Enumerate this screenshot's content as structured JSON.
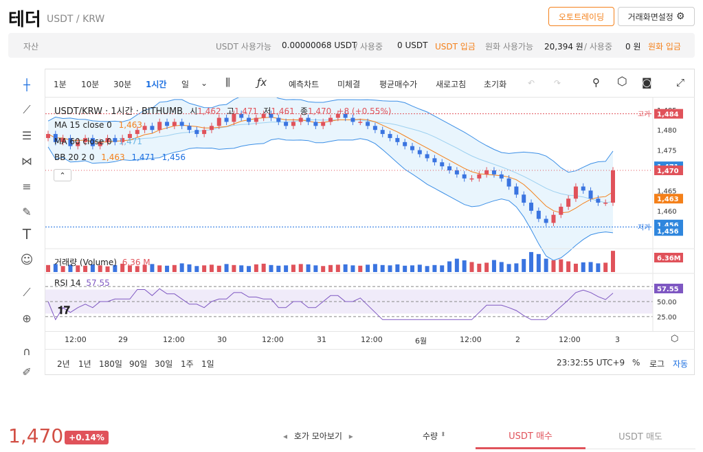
{
  "header": {
    "title": "테더",
    "pair": "USDT / KRW",
    "auto_trading": "오토트레이딩",
    "screen_settings": "거래화면설정"
  },
  "assets": {
    "label": "자산",
    "usdt_avail_label": "USDT 사용가능",
    "usdt_avail": "0.00000068 USDT",
    "slash1": "/ 사용중",
    "usdt_inuse": "0 USDT",
    "usdt_deposit": "USDT 입금",
    "krw_avail_label": "원화 사용가능",
    "krw_avail": "20,394 원",
    "slash2": "/ 사용중",
    "krw_inuse": "0 원",
    "krw_deposit": "원화 입금"
  },
  "toolbar": {
    "intervals": [
      "1분",
      "10분",
      "30분",
      "1시간",
      "일"
    ],
    "active": "1시간",
    "forecast": "예측차트",
    "unfilled": "미체결",
    "avg_price": "평균매수가",
    "refresh": "새로고침",
    "reset": "초기화"
  },
  "legend": {
    "pair": "USDT/KRW · 1시간 · BITHUMB",
    "o_label": "시",
    "o": "1,462",
    "h_label": "고",
    "h": "1,471",
    "l_label": "저",
    "l": "1,461",
    "c_label": "종",
    "c": "1,470",
    "chg": "+8 (+0.55%)",
    "ma15_label": "MA 15 close 0",
    "ma15": "1,463",
    "ma60_label": "MA 60 close 0",
    "ma60": "1,471",
    "bb_label": "BB 20 2 0",
    "bb_mid": "1,463",
    "bb_up": "1,471",
    "bb_low": "1,456",
    "vol_label": "거래량 (Volume)",
    "vol": "6.36 M",
    "rsi_label": "RSI 14",
    "rsi": "57.55"
  },
  "price_axis": {
    "ticks": [
      "1,485",
      "1,480",
      "1,475",
      "1,470",
      "1,465",
      "1,460"
    ],
    "high_label": "고가",
    "low_label": "저가",
    "tags": {
      "high": "1,484",
      "bb_up": "1,471",
      "last": "1,470",
      "ma": "1,463",
      "bb_low": "1,456",
      "low": "1,456",
      "vol": "6.36M",
      "rsi": "57.55"
    }
  },
  "rsi_axis": [
    "75.00",
    "50.00",
    "25.00"
  ],
  "x_axis": [
    "12:00",
    "29",
    "12:00",
    "30",
    "12:00",
    "31",
    "12:00",
    "6월",
    "12:00",
    "2",
    "12:00",
    "3"
  ],
  "range": {
    "buttons": [
      "2년",
      "1년",
      "180일",
      "90일",
      "30일",
      "1주",
      "1일"
    ],
    "time": "23:32:55 UTC+9",
    "pct": "%",
    "log": "로그",
    "auto": "자동"
  },
  "ticker": {
    "price": "1,470",
    "change": "+0.14%"
  },
  "orderbook": {
    "collect": "호가 모아보기",
    "qty": "수량"
  },
  "tabs": {
    "buy": "USDT 매수",
    "sell": "USDT 매도"
  },
  "chart_data": {
    "type": "candlestick",
    "unit": "KRW",
    "ylim": [
      1453,
      1487
    ],
    "close": [
      1479,
      1477,
      1478,
      1476,
      1477,
      1478,
      1476,
      1477,
      1478,
      1477,
      1478,
      1479,
      1480,
      1481,
      1480,
      1482,
      1481,
      1482,
      1481,
      1480,
      1479,
      1480,
      1481,
      1483,
      1482,
      1484,
      1483,
      1482,
      1483,
      1484,
      1483,
      1482,
      1481,
      1482,
      1483,
      1482,
      1481,
      1482,
      1483,
      1484,
      1483,
      1482,
      1482,
      1481,
      1480,
      1479,
      1478,
      1477,
      1476,
      1475,
      1474,
      1473,
      1472,
      1471,
      1470,
      1469,
      1468,
      1468,
      1469,
      1470,
      1469,
      1468,
      1466,
      1464,
      1462,
      1460,
      1458,
      1457,
      1459,
      1461,
      1463,
      1466,
      1465,
      1463,
      1462,
      1462,
      1470
    ],
    "volume": [
      2.1,
      2.4,
      1.8,
      2.2,
      2.0,
      1.9,
      2.3,
      2.0,
      1.7,
      2.1,
      2.5,
      2.0,
      1.8,
      2.2,
      2.4,
      2.0,
      1.9,
      2.1,
      2.6,
      2.3,
      1.8,
      2.0,
      2.2,
      1.9,
      2.4,
      2.1,
      2.0,
      1.8,
      2.3,
      2.5,
      2.1,
      1.9,
      2.0,
      2.2,
      2.4,
      2.3,
      2.0,
      1.8,
      2.1,
      2.2,
      2.3,
      2.0,
      1.9,
      2.2,
      2.4,
      2.1,
      2.0,
      2.3,
      1.9,
      2.0,
      2.2,
      1.8,
      2.1,
      2.0,
      3.2,
      4.0,
      3.5,
      3.0,
      2.5,
      2.8,
      3.6,
      3.0,
      2.4,
      2.6,
      3.9,
      6.0,
      5.4,
      4.0,
      3.5,
      3.8,
      3.2,
      2.5,
      2.9,
      3.0,
      2.6,
      2.8,
      6.36
    ]
  }
}
